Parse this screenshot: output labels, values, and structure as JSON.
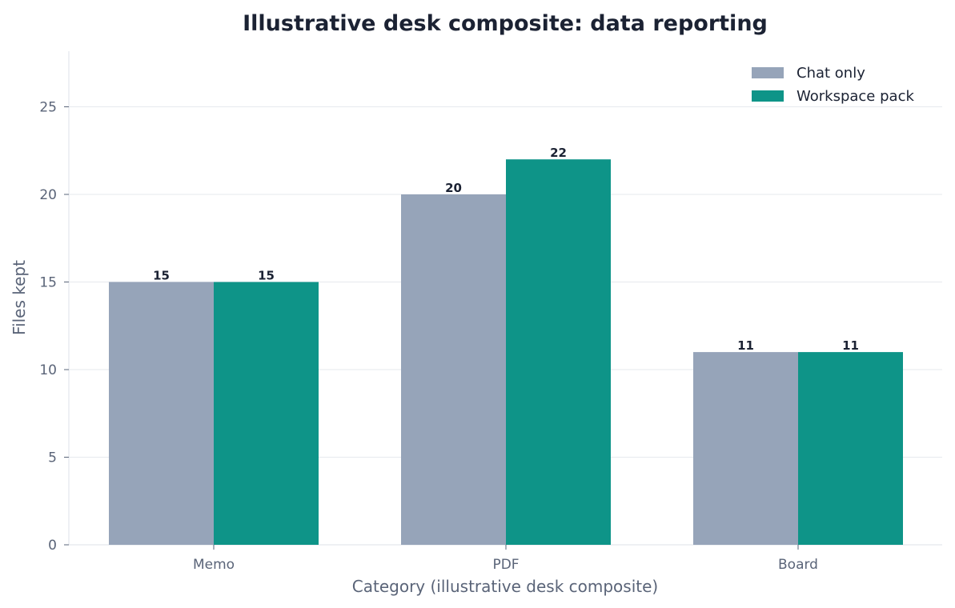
{
  "chart_data": {
    "type": "bar",
    "title": "Illustrative desk composite: data reporting",
    "xlabel": "Category (illustrative desk composite)",
    "ylabel": "Files kept",
    "categories": [
      "Memo",
      "PDF",
      "Board"
    ],
    "series": [
      {
        "name": "Chat only",
        "values": [
          15,
          20,
          11
        ],
        "color": "#96a4b9"
      },
      {
        "name": "Workspace pack",
        "values": [
          15,
          22,
          11
        ],
        "color": "#0e9488"
      }
    ],
    "ylim": [
      0,
      28
    ],
    "yticks": [
      0,
      5,
      10,
      15,
      20,
      25
    ],
    "grid": "horizontal",
    "legend_position": "top-right"
  }
}
